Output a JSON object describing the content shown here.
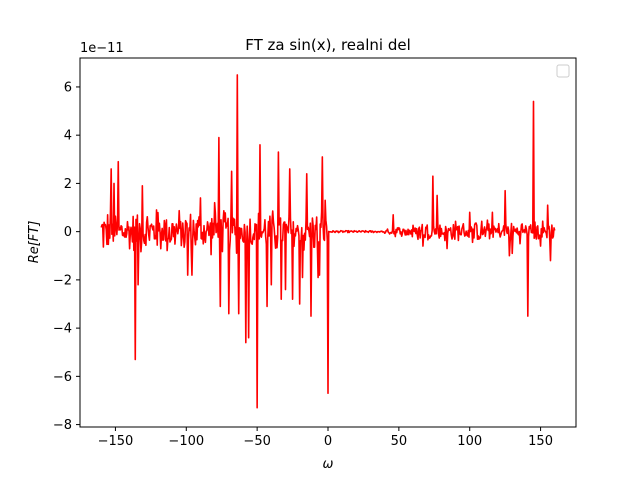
{
  "chart_data": {
    "type": "line",
    "title": "FT za sin(x), realni del",
    "xlabel": "ω",
    "ylabel": "Re[FT]",
    "y_offset_text": "1e−11",
    "y_scale": 1e-11,
    "xlim": [
      -175,
      175
    ],
    "ylim": [
      -8.1,
      7.2
    ],
    "x_ticks": [
      -150,
      -100,
      -50,
      0,
      50,
      100,
      150
    ],
    "x_tick_labels": [
      "−150",
      "−100",
      "−50",
      "0",
      "50",
      "100",
      "150"
    ],
    "y_ticks": [
      -8,
      -6,
      -4,
      -2,
      0,
      2,
      4,
      6
    ],
    "y_tick_labels": [
      "−8",
      "−6",
      "−4",
      "−2",
      "0",
      "2",
      "4",
      "6"
    ],
    "grid": false,
    "legend": {
      "placement": "top-right",
      "entries": []
    },
    "series": [
      {
        "color": "#ff0000",
        "x_range": [
          -160,
          160
        ],
        "spikes": [
          {
            "x": -153,
            "y": 2.6
          },
          {
            "x": -151,
            "y": 2.0
          },
          {
            "x": -148,
            "y": 2.9
          },
          {
            "x": -136,
            "y": -5.3
          },
          {
            "x": -134,
            "y": -2.2
          },
          {
            "x": -131,
            "y": 1.9
          },
          {
            "x": -121,
            "y": 0.9
          },
          {
            "x": -99,
            "y": -1.8
          },
          {
            "x": -96,
            "y": -1.8
          },
          {
            "x": -90,
            "y": 1.4
          },
          {
            "x": -80,
            "y": 1.2
          },
          {
            "x": -77,
            "y": 3.9
          },
          {
            "x": -76,
            "y": -3.1
          },
          {
            "x": -70,
            "y": -3.4
          },
          {
            "x": -68,
            "y": 2.5
          },
          {
            "x": -64,
            "y": 6.5
          },
          {
            "x": -63,
            "y": -3.4
          },
          {
            "x": -58,
            "y": -4.6
          },
          {
            "x": -56,
            "y": -4.4
          },
          {
            "x": -50,
            "y": -7.3
          },
          {
            "x": -48,
            "y": 3.6
          },
          {
            "x": -43,
            "y": -3.1
          },
          {
            "x": -40,
            "y": -2.2
          },
          {
            "x": -35,
            "y": 3.3
          },
          {
            "x": -33,
            "y": -2.8
          },
          {
            "x": -30,
            "y": -2.4
          },
          {
            "x": -27,
            "y": 2.6
          },
          {
            "x": -25,
            "y": -2.8
          },
          {
            "x": -20,
            "y": -3.0
          },
          {
            "x": -18,
            "y": -1.9
          },
          {
            "x": -15,
            "y": 2.4
          },
          {
            "x": -12,
            "y": -3.5
          },
          {
            "x": -7,
            "y": -1.9
          },
          {
            "x": -6,
            "y": -1.8
          },
          {
            "x": -4,
            "y": 3.1
          },
          {
            "x": -2,
            "y": 1.3
          },
          {
            "x": 0,
            "y": -6.7
          },
          {
            "x": 46,
            "y": 0.7
          },
          {
            "x": 67,
            "y": -0.6
          },
          {
            "x": 74,
            "y": 2.3
          },
          {
            "x": 77,
            "y": 1.5
          },
          {
            "x": 84,
            "y": -0.7
          },
          {
            "x": 100,
            "y": 0.8
          },
          {
            "x": 116,
            "y": 0.8
          },
          {
            "x": 125,
            "y": 1.7
          },
          {
            "x": 128,
            "y": -1.0
          },
          {
            "x": 130,
            "y": -0.9
          },
          {
            "x": 141,
            "y": -3.5
          },
          {
            "x": 145,
            "y": 5.4
          },
          {
            "x": 150,
            "y": -0.6
          },
          {
            "x": 155,
            "y": 1.1
          },
          {
            "x": 157,
            "y": -1.2
          }
        ],
        "noise_left_amplitude": 0.7,
        "noise_right_amplitude": 0.35
      }
    ]
  }
}
